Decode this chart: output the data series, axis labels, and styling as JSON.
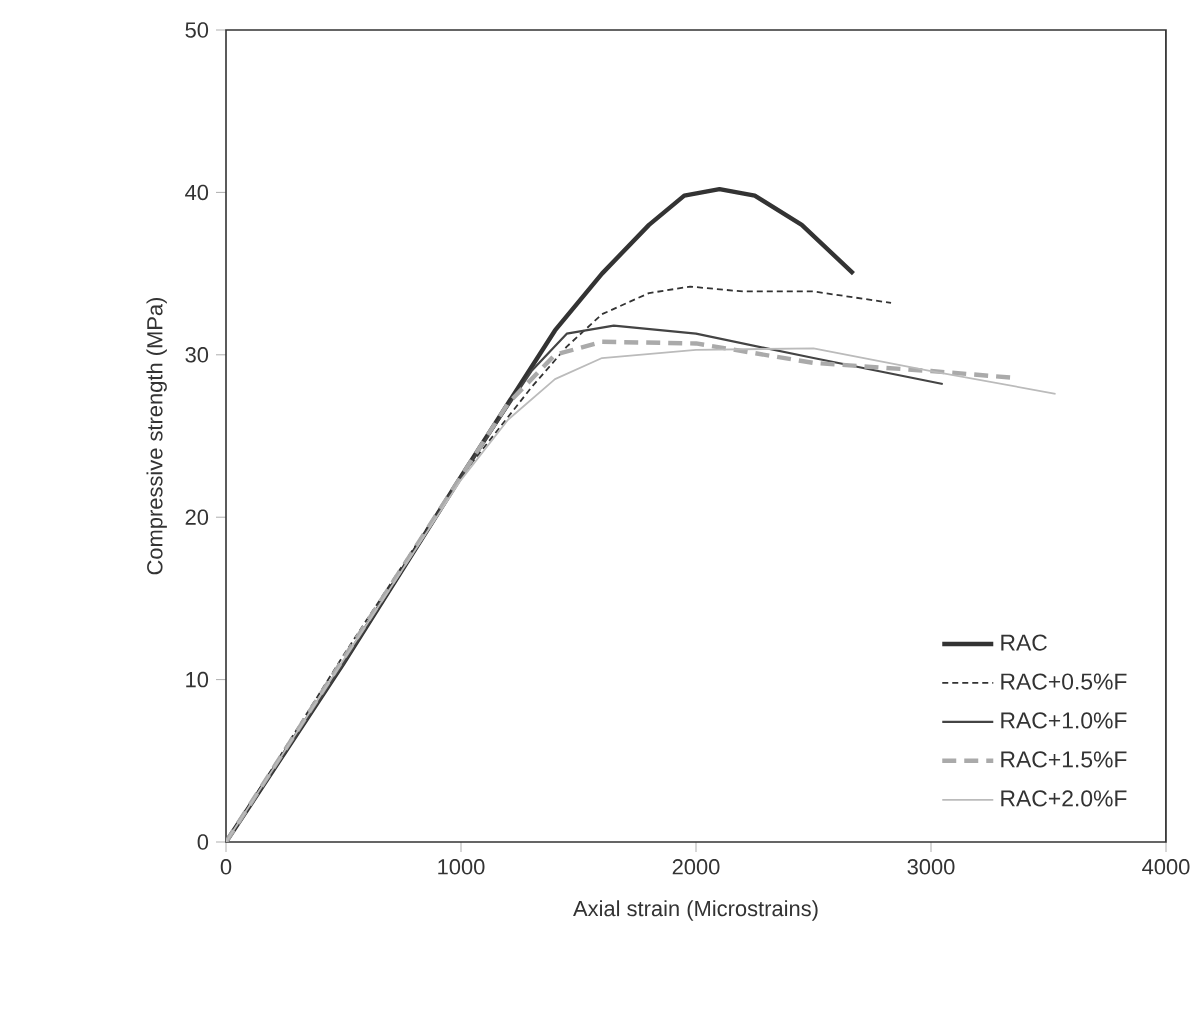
{
  "chart_data": {
    "type": "line",
    "xlabel": "Axial strain (Microstrains)",
    "ylabel": "Compressive strength (MPa)",
    "xlim": [
      0,
      4000
    ],
    "xticks": [
      0,
      1000,
      2000,
      3000,
      4000
    ],
    "ylim": [
      0,
      50
    ],
    "yticks": [
      0,
      10,
      20,
      30,
      40,
      50
    ],
    "grid": false,
    "legend": "bottom right",
    "marker": "none",
    "series": [
      {
        "name": "RAC",
        "color": "#333333",
        "line_style": "solid",
        "x": [
          0,
          500,
          1000,
          1200,
          1400,
          1600,
          1800,
          1950,
          2100,
          2250,
          2450,
          2670
        ],
        "values": [
          0,
          11,
          22.5,
          27,
          31.5,
          35,
          38,
          39.8,
          40.2,
          39.8,
          38,
          35
        ]
      },
      {
        "name": "RAC+0.5%F",
        "color": "#333333",
        "line_style": "dotted",
        "x": [
          0,
          500,
          1000,
          1300,
          1450,
          1600,
          1800,
          1975,
          2200,
          2500,
          2830
        ],
        "values": [
          0,
          11.5,
          22.5,
          28,
          30.5,
          32.5,
          33.8,
          34.2,
          33.9,
          33.9,
          33.2
        ]
      },
      {
        "name": "RAC+1.0%F",
        "color": "#444444",
        "line_style": "solid",
        "x": [
          0,
          500,
          1000,
          1300,
          1450,
          1650,
          2000,
          2500,
          3050
        ],
        "values": [
          0,
          11,
          22.5,
          29,
          31.3,
          31.8,
          31.3,
          29.8,
          28.2
        ]
      },
      {
        "name": "RAC+1.5%F",
        "color": "#aaaaaa",
        "line_style": "dashed",
        "x": [
          0,
          500,
          1000,
          1200,
          1400,
          1600,
          2000,
          2500,
          3000,
          3340
        ],
        "values": [
          0,
          11.3,
          22.5,
          27,
          30,
          30.8,
          30.7,
          29.5,
          29,
          28.6
        ]
      },
      {
        "name": "RAC+2.0%F",
        "color": "#bbbbbb",
        "line_style": "solid",
        "x": [
          0,
          500,
          1000,
          1200,
          1400,
          1600,
          2000,
          2500,
          3000,
          3530
        ],
        "values": [
          0,
          11.2,
          22.3,
          26,
          28.5,
          29.8,
          30.3,
          30.4,
          29,
          27.6
        ]
      }
    ]
  }
}
